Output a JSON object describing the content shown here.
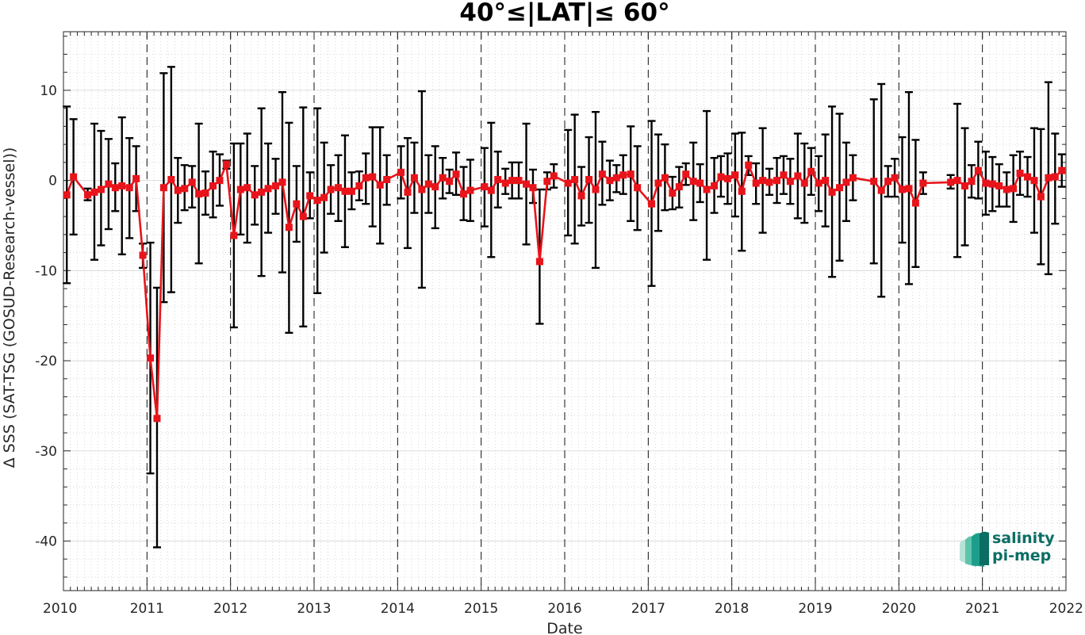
{
  "chart_data": {
    "type": "line",
    "title": "40°≤|LAT|≤ 60°",
    "xlabel": "Date",
    "ylabel": "Δ SSS (SAT-TSG (GOSUD-Research-vessel))",
    "xlim": [
      2010.0,
      2022.0
    ],
    "ylim": [
      -45.5,
      16.5
    ],
    "x_ticks": [
      "2010",
      "2011",
      "2012",
      "2013",
      "2014",
      "2015",
      "2016",
      "2017",
      "2018",
      "2019",
      "2020",
      "2021",
      "2022"
    ],
    "y_ticks": [
      "10",
      "0",
      "-10",
      "-20",
      "-30",
      "-40"
    ],
    "grid": "minor-dotted",
    "year_lines": "dashed",
    "series": [
      {
        "color": "#e8141b",
        "marker": "square",
        "errorbar_color": "#000000",
        "points": [
          {
            "x": 2010.04,
            "y": -1.6,
            "lo": -11.4,
            "hi": 8.2
          },
          {
            "x": 2010.12,
            "y": 0.4,
            "lo": -6.0,
            "hi": 6.8
          },
          {
            "x": 2010.29,
            "y": -1.6,
            "lo": -2.2,
            "hi": -0.9
          },
          {
            "x": 2010.37,
            "y": -1.3,
            "lo": -8.8,
            "hi": 6.3
          },
          {
            "x": 2010.45,
            "y": -1.0,
            "lo": -7.2,
            "hi": 5.5
          },
          {
            "x": 2010.54,
            "y": -0.4,
            "lo": -5.4,
            "hi": 4.6
          },
          {
            "x": 2010.62,
            "y": -0.8,
            "lo": -3.4,
            "hi": 1.9
          },
          {
            "x": 2010.7,
            "y": -0.6,
            "lo": -8.2,
            "hi": 7.0
          },
          {
            "x": 2010.79,
            "y": -0.8,
            "lo": -6.4,
            "hi": 4.7
          },
          {
            "x": 2010.87,
            "y": 0.2,
            "lo": -3.4,
            "hi": 3.8
          },
          {
            "x": 2010.95,
            "y": -8.3,
            "lo": -9.7,
            "hi": -7.0
          },
          {
            "x": 2011.04,
            "y": -19.7,
            "lo": -32.5,
            "hi": -6.9
          },
          {
            "x": 2011.12,
            "y": -26.4,
            "lo": -40.7,
            "hi": -11.9
          },
          {
            "x": 2011.2,
            "y": -0.8,
            "lo": -13.5,
            "hi": 11.9
          },
          {
            "x": 2011.29,
            "y": 0.1,
            "lo": -12.4,
            "hi": 12.6
          },
          {
            "x": 2011.37,
            "y": -1.1,
            "lo": -4.7,
            "hi": 2.5
          },
          {
            "x": 2011.45,
            "y": -0.9,
            "lo": -3.3,
            "hi": 1.7
          },
          {
            "x": 2011.54,
            "y": -0.2,
            "lo": -3.0,
            "hi": 1.6
          },
          {
            "x": 2011.62,
            "y": -1.5,
            "lo": -9.2,
            "hi": 6.3
          },
          {
            "x": 2011.7,
            "y": -1.4,
            "lo": -3.8,
            "hi": 1.0
          },
          {
            "x": 2011.79,
            "y": -0.6,
            "lo": -4.1,
            "hi": 3.2
          },
          {
            "x": 2011.87,
            "y": 0.0,
            "lo": -2.8,
            "hi": 2.9
          },
          {
            "x": 2011.95,
            "y": 1.8,
            "lo": 1.3,
            "hi": 2.2
          },
          {
            "x": 2012.04,
            "y": -6.1,
            "lo": -16.3,
            "hi": 4.1
          },
          {
            "x": 2012.12,
            "y": -1.0,
            "lo": -6.0,
            "hi": 4.1
          },
          {
            "x": 2012.2,
            "y": -0.8,
            "lo": -6.9,
            "hi": 5.2
          },
          {
            "x": 2012.29,
            "y": -1.6,
            "lo": -4.9,
            "hi": 1.6
          },
          {
            "x": 2012.37,
            "y": -1.3,
            "lo": -10.6,
            "hi": 8.0
          },
          {
            "x": 2012.45,
            "y": -0.9,
            "lo": -5.8,
            "hi": 4.1
          },
          {
            "x": 2012.54,
            "y": -0.6,
            "lo": -3.7,
            "hi": 2.4
          },
          {
            "x": 2012.62,
            "y": -0.2,
            "lo": -10.2,
            "hi": 9.8
          },
          {
            "x": 2012.7,
            "y": -5.2,
            "lo": -16.9,
            "hi": 6.4
          },
          {
            "x": 2012.79,
            "y": -2.6,
            "lo": -6.8,
            "hi": 1.6
          },
          {
            "x": 2012.87,
            "y": -4.0,
            "lo": -16.2,
            "hi": 8.1
          },
          {
            "x": 2012.95,
            "y": -1.7,
            "lo": -4.2,
            "hi": 0.9
          },
          {
            "x": 2013.04,
            "y": -2.2,
            "lo": -12.5,
            "hi": 8.0
          },
          {
            "x": 2013.12,
            "y": -1.9,
            "lo": -8.0,
            "hi": 4.2
          },
          {
            "x": 2013.2,
            "y": -1.0,
            "lo": -3.7,
            "hi": 1.7
          },
          {
            "x": 2013.29,
            "y": -0.8,
            "lo": -4.5,
            "hi": 2.8
          },
          {
            "x": 2013.37,
            "y": -1.2,
            "lo": -7.4,
            "hi": 5.0
          },
          {
            "x": 2013.45,
            "y": -1.2,
            "lo": -3.2,
            "hi": 0.9
          },
          {
            "x": 2013.54,
            "y": -0.6,
            "lo": -2.2,
            "hi": 1.0
          },
          {
            "x": 2013.62,
            "y": 0.3,
            "lo": -2.6,
            "hi": 3.0
          },
          {
            "x": 2013.7,
            "y": 0.4,
            "lo": -5.1,
            "hi": 5.9
          },
          {
            "x": 2013.79,
            "y": -0.5,
            "lo": -7.0,
            "hi": 5.9
          },
          {
            "x": 2013.87,
            "y": 0.1,
            "lo": -2.7,
            "hi": 2.8
          },
          {
            "x": 2014.04,
            "y": 0.9,
            "lo": -2.0,
            "hi": 3.8
          },
          {
            "x": 2014.12,
            "y": -1.3,
            "lo": -7.5,
            "hi": 4.7
          },
          {
            "x": 2014.2,
            "y": 0.3,
            "lo": -3.6,
            "hi": 4.2
          },
          {
            "x": 2014.29,
            "y": -1.0,
            "lo": -11.9,
            "hi": 9.9
          },
          {
            "x": 2014.37,
            "y": -0.4,
            "lo": -3.6,
            "hi": 2.8
          },
          {
            "x": 2014.45,
            "y": -0.7,
            "lo": -5.3,
            "hi": 3.8
          },
          {
            "x": 2014.54,
            "y": 0.3,
            "lo": -2.0,
            "hi": 2.5
          },
          {
            "x": 2014.62,
            "y": -0.1,
            "lo": -1.4,
            "hi": 1.2
          },
          {
            "x": 2014.7,
            "y": 0.7,
            "lo": -1.6,
            "hi": 3.1
          },
          {
            "x": 2014.79,
            "y": -1.5,
            "lo": -4.4,
            "hi": 1.5
          },
          {
            "x": 2014.87,
            "y": -1.1,
            "lo": -4.5,
            "hi": 2.3
          },
          {
            "x": 2015.04,
            "y": -0.7,
            "lo": -5.1,
            "hi": 3.6
          },
          {
            "x": 2015.12,
            "y": -1.1,
            "lo": -8.5,
            "hi": 6.4
          },
          {
            "x": 2015.2,
            "y": 0.1,
            "lo": -3.0,
            "hi": 3.2
          },
          {
            "x": 2015.29,
            "y": -0.3,
            "lo": -1.5,
            "hi": 1.3
          },
          {
            "x": 2015.37,
            "y": 0.0,
            "lo": -2.0,
            "hi": 2.0
          },
          {
            "x": 2015.45,
            "y": 0.0,
            "lo": -2.0,
            "hi": 2.0
          },
          {
            "x": 2015.54,
            "y": -0.4,
            "lo": -7.1,
            "hi": 6.3
          },
          {
            "x": 2015.62,
            "y": -0.8,
            "lo": -2.5,
            "hi": 1.2
          },
          {
            "x": 2015.7,
            "y": -9.0,
            "lo": -15.9,
            "hi": -1.0
          },
          {
            "x": 2015.79,
            "y": -0.1,
            "lo": -1.0,
            "hi": 0.9
          },
          {
            "x": 2015.87,
            "y": 0.5,
            "lo": -0.8,
            "hi": 1.8
          },
          {
            "x": 2016.04,
            "y": -0.3,
            "lo": -6.1,
            "hi": 5.6
          },
          {
            "x": 2016.12,
            "y": 0.1,
            "lo": -7.0,
            "hi": 7.3
          },
          {
            "x": 2016.2,
            "y": -1.7,
            "lo": -5.0,
            "hi": 1.5
          },
          {
            "x": 2016.29,
            "y": 0.1,
            "lo": -4.7,
            "hi": 4.8
          },
          {
            "x": 2016.37,
            "y": -1.0,
            "lo": -9.7,
            "hi": 7.6
          },
          {
            "x": 2016.45,
            "y": 0.7,
            "lo": -2.7,
            "hi": 4.3
          },
          {
            "x": 2016.54,
            "y": 0.0,
            "lo": -2.2,
            "hi": 2.2
          },
          {
            "x": 2016.62,
            "y": 0.3,
            "lo": -1.3,
            "hi": 1.7
          },
          {
            "x": 2016.7,
            "y": 0.6,
            "lo": -1.5,
            "hi": 2.8
          },
          {
            "x": 2016.79,
            "y": 0.7,
            "lo": -4.5,
            "hi": 6.0
          },
          {
            "x": 2016.87,
            "y": -0.8,
            "lo": -5.5,
            "hi": 3.8
          },
          {
            "x": 2017.04,
            "y": -2.6,
            "lo": -11.7,
            "hi": 6.6
          },
          {
            "x": 2017.12,
            "y": -0.3,
            "lo": -5.6,
            "hi": 5.1
          },
          {
            "x": 2017.2,
            "y": 0.3,
            "lo": -3.3,
            "hi": 4.0
          },
          {
            "x": 2017.29,
            "y": -1.4,
            "lo": -3.2,
            "hi": 0.4
          },
          {
            "x": 2017.37,
            "y": -0.7,
            "lo": -3.0,
            "hi": 1.5
          },
          {
            "x": 2017.45,
            "y": 0.7,
            "lo": -0.5,
            "hi": 1.9
          },
          {
            "x": 2017.54,
            "y": -0.1,
            "lo": -4.4,
            "hi": 4.2
          },
          {
            "x": 2017.62,
            "y": -0.3,
            "lo": -2.4,
            "hi": 1.8
          },
          {
            "x": 2017.7,
            "y": -1.0,
            "lo": -8.8,
            "hi": 7.7
          },
          {
            "x": 2017.79,
            "y": -0.6,
            "lo": -3.6,
            "hi": 2.5
          },
          {
            "x": 2017.87,
            "y": 0.4,
            "lo": -1.8,
            "hi": 2.7
          },
          {
            "x": 2017.95,
            "y": 0.2,
            "lo": -2.6,
            "hi": 3.0
          },
          {
            "x": 2018.04,
            "y": 0.6,
            "lo": -4.0,
            "hi": 5.2
          },
          {
            "x": 2018.12,
            "y": -1.2,
            "lo": -7.8,
            "hi": 5.3
          },
          {
            "x": 2018.2,
            "y": 1.7,
            "lo": 0.6,
            "hi": 2.7
          },
          {
            "x": 2018.29,
            "y": -0.3,
            "lo": -2.6,
            "hi": 1.9
          },
          {
            "x": 2018.37,
            "y": 0.0,
            "lo": -5.8,
            "hi": 5.8
          },
          {
            "x": 2018.45,
            "y": -0.2,
            "lo": -1.6,
            "hi": 1.3
          },
          {
            "x": 2018.54,
            "y": 0.0,
            "lo": -2.5,
            "hi": 2.5
          },
          {
            "x": 2018.62,
            "y": 0.6,
            "lo": -1.5,
            "hi": 2.7
          },
          {
            "x": 2018.7,
            "y": -0.1,
            "lo": -2.6,
            "hi": 2.4
          },
          {
            "x": 2018.79,
            "y": 0.5,
            "lo": -4.2,
            "hi": 5.2
          },
          {
            "x": 2018.87,
            "y": -0.3,
            "lo": -4.7,
            "hi": 4.1
          },
          {
            "x": 2018.95,
            "y": 1.0,
            "lo": -1.6,
            "hi": 3.6
          },
          {
            "x": 2019.04,
            "y": -0.3,
            "lo": -3.4,
            "hi": 2.7
          },
          {
            "x": 2019.12,
            "y": 0.0,
            "lo": -5.1,
            "hi": 5.1
          },
          {
            "x": 2019.2,
            "y": -1.3,
            "lo": -10.7,
            "hi": 8.2
          },
          {
            "x": 2019.29,
            "y": -0.8,
            "lo": -8.9,
            "hi": 7.4
          },
          {
            "x": 2019.37,
            "y": -0.2,
            "lo": -4.5,
            "hi": 4.2
          },
          {
            "x": 2019.45,
            "y": 0.3,
            "lo": -2.2,
            "hi": 2.8
          },
          {
            "x": 2019.7,
            "y": -0.1,
            "lo": -9.2,
            "hi": 9.0
          },
          {
            "x": 2019.79,
            "y": -1.1,
            "lo": -12.9,
            "hi": 10.7
          },
          {
            "x": 2019.87,
            "y": -0.1,
            "lo": -1.8,
            "hi": 1.6
          },
          {
            "x": 2019.95,
            "y": 0.3,
            "lo": -1.8,
            "hi": 2.4
          },
          {
            "x": 2020.04,
            "y": -1.0,
            "lo": -6.9,
            "hi": 4.8
          },
          {
            "x": 2020.12,
            "y": -0.9,
            "lo": -11.5,
            "hi": 9.8
          },
          {
            "x": 2020.2,
            "y": -2.5,
            "lo": -9.6,
            "hi": 4.5
          },
          {
            "x": 2020.29,
            "y": -0.3,
            "lo": -1.5,
            "hi": 0.9
          },
          {
            "x": 2020.62,
            "y": -0.2,
            "lo": -0.9,
            "hi": 0.6
          },
          {
            "x": 2020.7,
            "y": 0.0,
            "lo": -8.5,
            "hi": 8.5
          },
          {
            "x": 2020.79,
            "y": -0.6,
            "lo": -7.2,
            "hi": 5.8
          },
          {
            "x": 2020.87,
            "y": -0.1,
            "lo": -1.9,
            "hi": 1.7
          },
          {
            "x": 2020.95,
            "y": 1.1,
            "lo": -2.0,
            "hi": 4.3
          },
          {
            "x": 2021.04,
            "y": -0.3,
            "lo": -3.8,
            "hi": 3.2
          },
          {
            "x": 2021.12,
            "y": -0.4,
            "lo": -3.4,
            "hi": 2.6
          },
          {
            "x": 2021.2,
            "y": -0.6,
            "lo": -2.9,
            "hi": 1.8
          },
          {
            "x": 2021.29,
            "y": -1.0,
            "lo": -2.9,
            "hi": 0.9
          },
          {
            "x": 2021.37,
            "y": -0.9,
            "lo": -4.6,
            "hi": 2.8
          },
          {
            "x": 2021.45,
            "y": 0.8,
            "lo": -1.6,
            "hi": 3.2
          },
          {
            "x": 2021.54,
            "y": 0.4,
            "lo": -1.8,
            "hi": 2.6
          },
          {
            "x": 2021.62,
            "y": 0.0,
            "lo": -5.8,
            "hi": 5.8
          },
          {
            "x": 2021.7,
            "y": -1.8,
            "lo": -9.3,
            "hi": 5.7
          },
          {
            "x": 2021.79,
            "y": 0.3,
            "lo": -10.4,
            "hi": 10.9
          },
          {
            "x": 2021.87,
            "y": 0.4,
            "lo": -4.8,
            "hi": 5.2
          },
          {
            "x": 2021.95,
            "y": 1.1,
            "lo": -0.7,
            "hi": 2.9
          }
        ]
      }
    ]
  },
  "logo": {
    "line1": "salinity",
    "line2": "pi-mep",
    "color": "#0b6e64"
  }
}
